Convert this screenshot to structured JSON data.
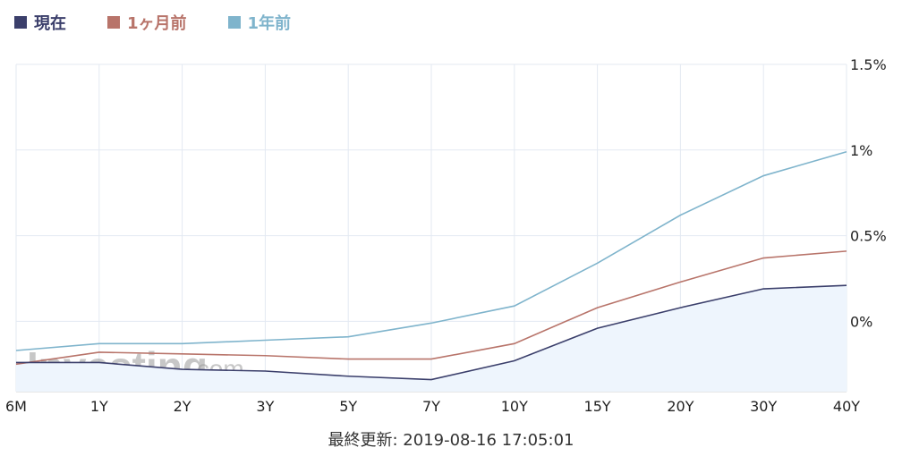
{
  "colors": {
    "current": "#3b3f6b",
    "one_month": "#b8746a",
    "one_year": "#7fb4cc",
    "area_fill": "#eef5fd",
    "grid": "#e3e9f2"
  },
  "watermark": {
    "text": "Investing",
    "suffix": ".com"
  },
  "footer": {
    "text": "最終更新: 2019-08-16 17:05:01"
  },
  "chart_data": {
    "type": "line",
    "categories": [
      "6M",
      "1Y",
      "2Y",
      "3Y",
      "5Y",
      "7Y",
      "10Y",
      "15Y",
      "20Y",
      "30Y",
      "40Y"
    ],
    "y_ticks": [
      "1.5%",
      "1%",
      "0.5%",
      "0%"
    ],
    "y_tick_values": [
      1.5,
      1.0,
      0.5,
      0.0
    ],
    "ylim": [
      -0.41,
      1.5
    ],
    "y_axis_position": "right",
    "grid": true,
    "legend_position": "top-left",
    "series": [
      {
        "name": "現在",
        "color": "#3b3f6b",
        "fill": true,
        "values": [
          -0.24,
          -0.24,
          -0.28,
          -0.29,
          -0.32,
          -0.34,
          -0.23,
          -0.04,
          0.08,
          0.19,
          0.21
        ]
      },
      {
        "name": "1ヶ月前",
        "color": "#b8746a",
        "fill": false,
        "values": [
          -0.25,
          -0.18,
          -0.19,
          -0.2,
          -0.22,
          -0.22,
          -0.13,
          0.08,
          0.23,
          0.37,
          0.41
        ]
      },
      {
        "name": "1年前",
        "color": "#7fb4cc",
        "fill": false,
        "values": [
          -0.17,
          -0.13,
          -0.13,
          -0.11,
          -0.09,
          -0.01,
          0.09,
          0.34,
          0.62,
          0.85,
          0.99
        ]
      }
    ]
  }
}
